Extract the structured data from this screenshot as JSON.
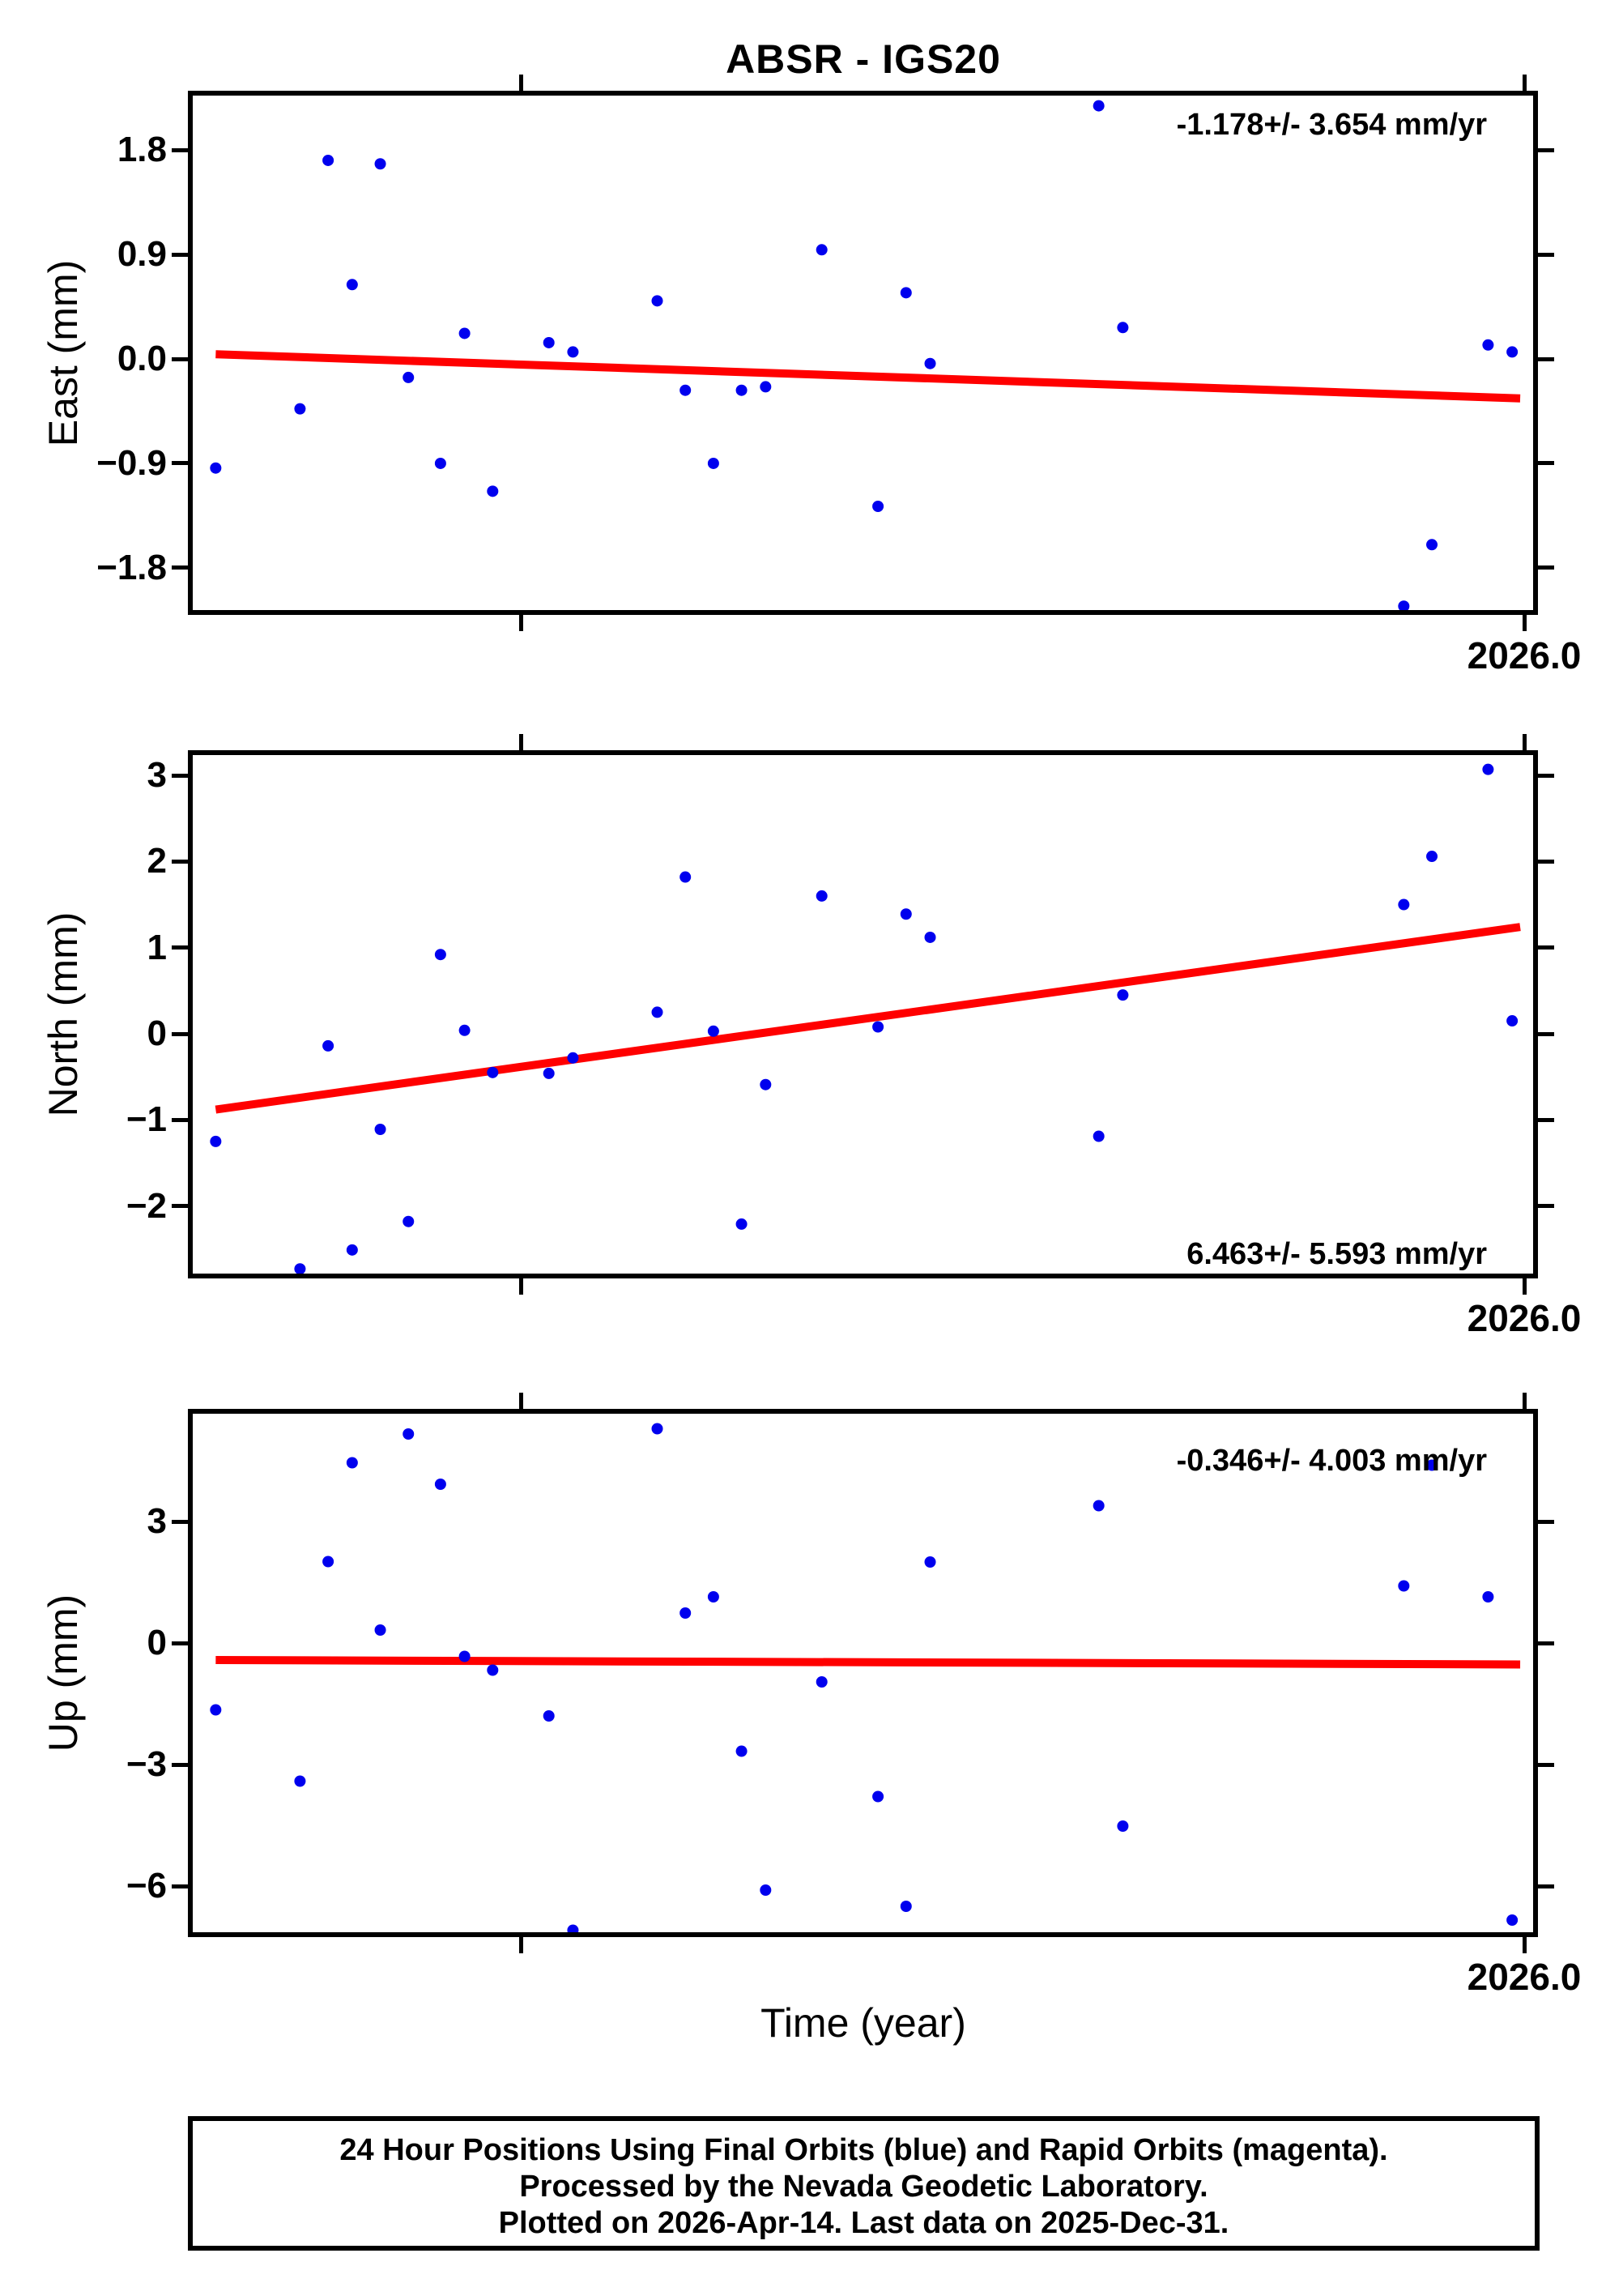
{
  "title": "ABSR - IGS20",
  "colors": {
    "point_blue": "#0000EE",
    "trend_red": "#FF0000",
    "frame_black": "#000000",
    "background": "#FFFFFF"
  },
  "x_axis": {
    "label": "Time (year)",
    "xlim": [
      2025.668,
      2026.002
    ],
    "tick_years": [
      2025.75,
      2026.0
    ],
    "labeled_tick_year": 2026.0,
    "tick_label": "2026.0"
  },
  "footer": {
    "line1": "24 Hour Positions Using Final Orbits (blue) and Rapid Orbits (magenta).",
    "line2": "Processed by the Nevada Geodetic Laboratory.",
    "line3": "Plotted on 2026-Apr-14. Last data on 2025-Dec-31."
  },
  "chart_data": [
    {
      "type": "scatter",
      "name": "east",
      "ylabel": "East (mm)",
      "annotation": "-1.178+/- 3.654 mm/yr",
      "annotation_position": "top-right",
      "velocity_mm_yr": -1.178,
      "velocity_sigma_mm_yr": 3.654,
      "ylim": [
        -2.16,
        2.28
      ],
      "yticks": [
        1.8,
        0.9,
        0.0,
        -0.9,
        -1.8
      ],
      "ytick_labels": [
        "1.8",
        "0.9",
        "0.0",
        "−0.9",
        "−1.8"
      ],
      "x": [
        2025.674,
        2025.695,
        2025.702,
        2025.708,
        2025.715,
        2025.722,
        2025.73,
        2025.736,
        2025.743,
        2025.757,
        2025.763,
        2025.784,
        2025.791,
        2025.798,
        2025.805,
        2025.811,
        2025.825,
        2025.839,
        2025.846,
        2025.852,
        2025.894,
        2025.9,
        2025.97,
        2025.977,
        2025.991,
        2025.997
      ],
      "y": [
        -0.94,
        -0.43,
        1.71,
        0.64,
        1.68,
        -0.16,
        -0.9,
        0.22,
        -1.14,
        0.14,
        0.06,
        0.5,
        -0.27,
        -0.9,
        -0.27,
        -0.24,
        0.94,
        -1.27,
        0.57,
        -0.04,
        2.18,
        0.27,
        -2.13,
        -1.6,
        0.12,
        0.06
      ],
      "trend": {
        "x": [
          2025.674,
          2025.999
        ],
        "y": [
          0.04,
          -0.34
        ]
      }
    },
    {
      "type": "scatter",
      "name": "north",
      "ylabel": "North (mm)",
      "annotation": "6.463+/- 5.593 mm/yr",
      "annotation_position": "bottom-right",
      "velocity_mm_yr": 6.463,
      "velocity_sigma_mm_yr": 5.593,
      "ylim": [
        -2.79,
        3.23
      ],
      "yticks": [
        3,
        2,
        1,
        0,
        -1,
        -2
      ],
      "ytick_labels": [
        "3",
        "2",
        "1",
        "0",
        "−1",
        "−2"
      ],
      "x": [
        2025.674,
        2025.695,
        2025.702,
        2025.708,
        2025.715,
        2025.722,
        2025.73,
        2025.736,
        2025.743,
        2025.757,
        2025.763,
        2025.784,
        2025.791,
        2025.798,
        2025.805,
        2025.811,
        2025.825,
        2025.839,
        2025.846,
        2025.852,
        2025.894,
        2025.9,
        2025.97,
        2025.977,
        2025.991,
        2025.997
      ],
      "y": [
        -1.25,
        -2.73,
        -0.14,
        -2.51,
        -1.11,
        -2.18,
        0.92,
        0.04,
        -0.45,
        -0.46,
        -0.28,
        0.25,
        1.82,
        0.03,
        -2.21,
        -0.59,
        1.6,
        0.08,
        1.39,
        1.12,
        -1.19,
        0.45,
        1.5,
        2.06,
        3.07,
        0.15
      ],
      "trend": {
        "x": [
          2025.674,
          2025.999
        ],
        "y": [
          -0.88,
          1.24
        ]
      }
    },
    {
      "type": "scatter",
      "name": "up",
      "ylabel": "Up (mm)",
      "annotation": "-0.346+/- 4.003 mm/yr",
      "annotation_position": "top-right",
      "velocity_mm_yr": -0.346,
      "velocity_sigma_mm_yr": 4.003,
      "ylim": [
        -7.14,
        5.66
      ],
      "yticks": [
        3,
        0,
        -3,
        -6
      ],
      "ytick_labels": [
        "3",
        "0",
        "−3",
        "−6"
      ],
      "x": [
        2025.674,
        2025.695,
        2025.702,
        2025.708,
        2025.715,
        2025.722,
        2025.73,
        2025.736,
        2025.743,
        2025.757,
        2025.763,
        2025.784,
        2025.791,
        2025.798,
        2025.805,
        2025.811,
        2025.825,
        2025.839,
        2025.846,
        2025.852,
        2025.894,
        2025.9,
        2025.97,
        2025.977,
        2025.991,
        2025.997
      ],
      "y": [
        -1.65,
        -3.41,
        2.01,
        4.45,
        0.32,
        5.16,
        3.92,
        -0.33,
        -0.67,
        -1.8,
        -7.09,
        5.29,
        0.74,
        1.14,
        -2.67,
        -6.1,
        -0.96,
        -3.79,
        -6.5,
        2.0,
        3.39,
        -4.52,
        1.41,
        4.39,
        1.14,
        -6.84
      ],
      "trend": {
        "x": [
          2025.674,
          2025.999
        ],
        "y": [
          -0.42,
          -0.53
        ]
      }
    }
  ]
}
